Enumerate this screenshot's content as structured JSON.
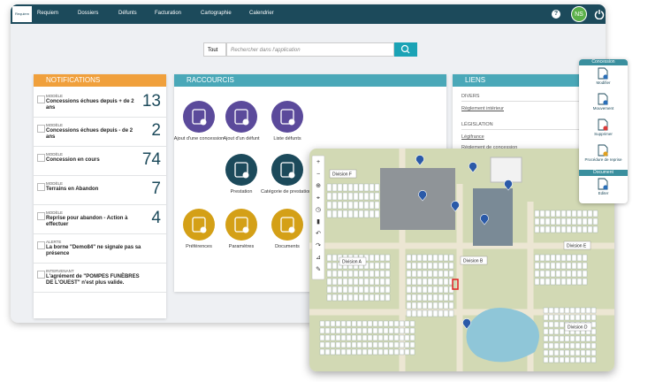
{
  "nav": {
    "logo": "Requiem",
    "menu": [
      "Requiem",
      "Dossiers",
      "Défunts",
      "Facturation",
      "Cartographie",
      "Calendrier"
    ],
    "avatar": "NS"
  },
  "search": {
    "scope": "Tout",
    "placeholder": "Rechercher dans l'application"
  },
  "notifications": {
    "title": "NOTIFICATIONS",
    "items": [
      {
        "tag": "MODÈLE",
        "text": "Concessions échues depuis + de 2 ans",
        "count": 13
      },
      {
        "tag": "MODÈLE",
        "text": "Concessions échues depuis - de 2 ans",
        "count": 2
      },
      {
        "tag": "MODÈLE",
        "text": "Concession en cours",
        "count": 74
      },
      {
        "tag": "MODÈLE",
        "text": "Terrains en Abandon",
        "count": 7
      },
      {
        "tag": "MODÈLE",
        "text": "Reprise pour abandon - Action à effectuer",
        "count": 4
      },
      {
        "tag": "ALERTE",
        "text": "La borne \"Demo84\" ne signale pas sa présence"
      },
      {
        "tag": "INTERVENANT",
        "text": "L'agrément de \"POMPES FUNÈBRES DE L'OUEST\" n'est plus valide."
      }
    ]
  },
  "shortcuts": {
    "title": "RACCOURCIS",
    "items": [
      "Ajout d'une concession",
      "Ajout d'un défunt",
      "Liste défunts",
      "Prestation",
      "Catégorie de prestations",
      "Préférences",
      "Paramètres",
      "Documents"
    ]
  },
  "links": {
    "title": "LIENS",
    "sections": [
      {
        "heading": "DIVERS",
        "links": [
          "Règlement intérieur"
        ]
      },
      {
        "heading": "LÉGISLATION",
        "links": [
          "Légifrance",
          "Réglement de concession"
        ]
      }
    ]
  },
  "map": {
    "divisions": [
      "Division F",
      "Division A",
      "Division B",
      "Division E",
      "Division D"
    ]
  },
  "popup": {
    "sections": [
      {
        "title": "Concession",
        "actions": [
          "Modifier",
          "Mouvement",
          "Supprimer",
          "Procédure de reprise"
        ]
      },
      {
        "title": "Document",
        "actions": [
          "Editer"
        ]
      }
    ]
  }
}
